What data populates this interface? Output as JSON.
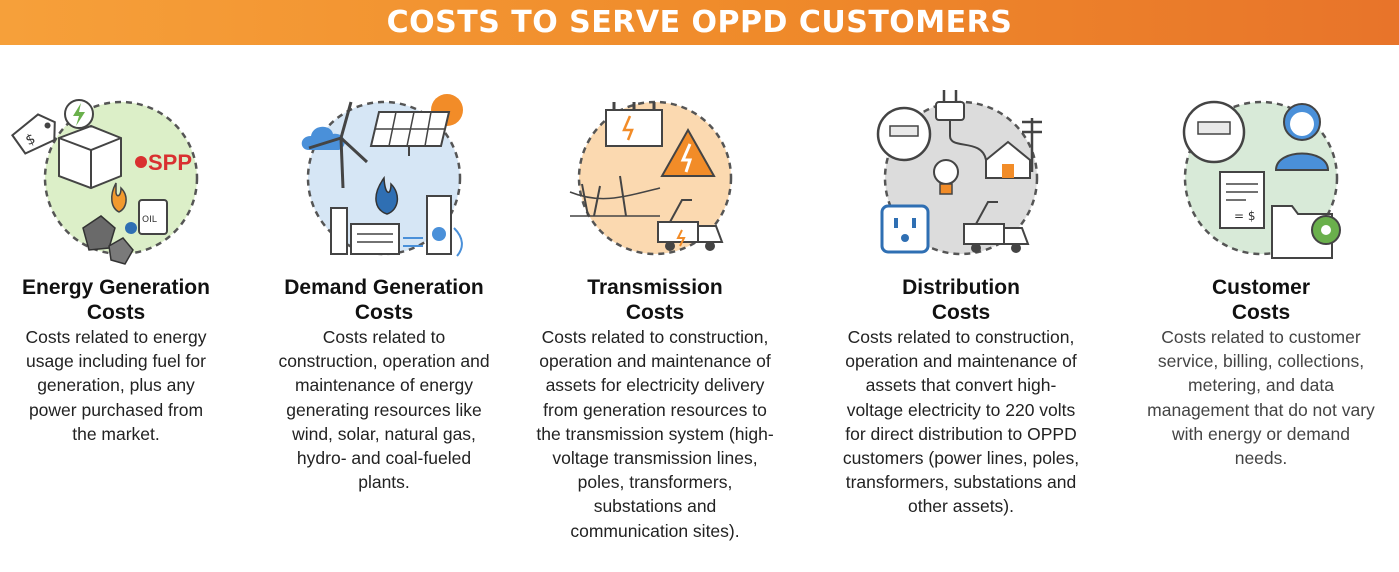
{
  "header": {
    "title": "COSTS TO SERVE OPPD CUSTOMERS"
  },
  "categories": [
    {
      "id": "energy-generation",
      "title_line1": "Energy Generation",
      "title_line2": "Costs",
      "description": "Costs related to energy usage including fuel for generation, plus any power purchased from the market.",
      "icon": "energy-generation-icon",
      "badge_text": "SPP",
      "oil_label": "OIL",
      "circle_color": "#dcefc8"
    },
    {
      "id": "demand-generation",
      "title_line1": "Demand Generation",
      "title_line2": "Costs",
      "description": "Costs related to construction, operation and maintenance of energy generating resources like wind, solar, natural gas, hydro- and coal-fueled plants.",
      "icon": "demand-generation-icon",
      "circle_color": "#d6e6f5"
    },
    {
      "id": "transmission",
      "title_line1": "Transmission",
      "title_line2": "Costs",
      "description": "Costs related to construction, operation and maintenance of assets for electricity delivery from generation resources to the transmission system (high-voltage transmission lines, poles, transformers, substations and communication sites).",
      "icon": "transmission-icon",
      "circle_color": "#fbd9b0"
    },
    {
      "id": "distribution",
      "title_line1": "Distribution",
      "title_line2": "Costs",
      "description": "Costs related to construction, operation and maintenance of assets that convert high-voltage electricity to 220 volts for direct distribution to OPPD customers (power lines, poles, transformers, substations and other assets).",
      "icon": "distribution-icon",
      "circle_color": "#dcdcdc"
    },
    {
      "id": "customer",
      "title_line1": "Customer",
      "title_line2": "Costs",
      "description": "Costs related to customer service, billing, collections, metering, and data management that do not vary with energy or demand needs.",
      "icon": "customer-icon",
      "invoice_label": "= $",
      "circle_color": "#d8ead8"
    }
  ]
}
